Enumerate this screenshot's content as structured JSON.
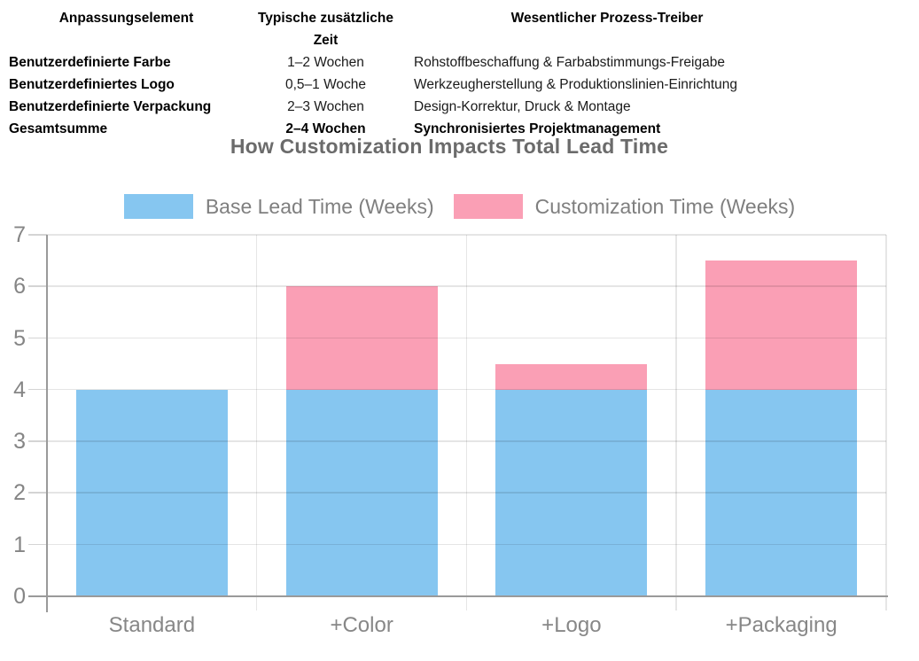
{
  "table": {
    "headers": [
      "Anpassungselement",
      "Typische zusätzliche Zeit",
      "Wesentlicher Prozess-Treiber"
    ],
    "rows": [
      {
        "item": "Benutzerdefinierte Farbe",
        "time": "1–2 Wochen",
        "driver": "Rohstoffbeschaffung & Farbabstimmungs-Freigabe"
      },
      {
        "item": "Benutzerdefiniertes Logo",
        "time": "0,5–1 Woche",
        "driver": "Werkzeugherstellung & Produktionslinien-Einrichtung"
      },
      {
        "item": "Benutzerdefinierte Verpackung",
        "time": "2–3 Wochen",
        "driver": "Design-Korrektur, Druck & Montage"
      },
      {
        "item": "Gesamtsumme",
        "time": "2–4 Wochen",
        "driver": "Synchronisiertes Projektmanagement"
      }
    ]
  },
  "chart": {
    "title": "How Customization Impacts Total Lead Time",
    "legend": [
      {
        "label": "Base Lead Time (Weeks)",
        "color": "#86C6F0"
      },
      {
        "label": "Customization Time (Weeks)",
        "color": "#FA9FB5"
      }
    ]
  },
  "chart_data": {
    "type": "bar",
    "stacked": true,
    "title": "How Customization Impacts Total Lead Time",
    "categories": [
      "Standard",
      "+Color",
      "+Logo",
      "+Packaging"
    ],
    "series": [
      {
        "name": "Base Lead Time (Weeks)",
        "color": "#86C6F0",
        "values": [
          4,
          4,
          4,
          4
        ]
      },
      {
        "name": "Customization Time (Weeks)",
        "color": "#FA9FB5",
        "values": [
          0,
          2,
          0.5,
          2.5
        ]
      }
    ],
    "totals": [
      4,
      6,
      4.5,
      6.5
    ],
    "xlabel": "",
    "ylabel": "",
    "ylim": [
      0,
      7
    ],
    "ytick_step": 1,
    "yticks": [
      0,
      1,
      2,
      3,
      4,
      5,
      6,
      7
    ],
    "grid": true,
    "legend_position": "top"
  },
  "colors": {
    "axis": "#9a9a9a",
    "gridline": "#e6e6e6",
    "tick_label": "#858585",
    "title": "#6b6b6b",
    "legend_text": "#7f7f7f"
  }
}
